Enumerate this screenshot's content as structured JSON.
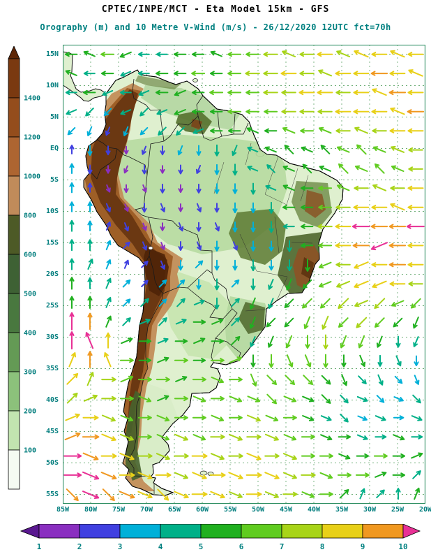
{
  "chart_data": {
    "type": "heatmap",
    "title": "CPTEC/INPE/MCT -  Eta Model 15km - GFS",
    "subtitle": "Orography (m) and 10 Metre V-Wind (m/s) - 26/12/2020 12UTC fct=70h",
    "region": "South America",
    "grid_on": true,
    "lat_ticks": [
      "15N",
      "10N",
      "5N",
      "EQ",
      "5S",
      "10S",
      "15S",
      "20S",
      "25S",
      "30S",
      "35S",
      "40S",
      "45S",
      "50S",
      "55S"
    ],
    "lon_ticks": [
      "85W",
      "80W",
      "75W",
      "70W",
      "65W",
      "60W",
      "55W",
      "50W",
      "45W",
      "40W",
      "35W",
      "30W",
      "25W",
      "20W"
    ],
    "elevation_scale": {
      "units": "m",
      "tick_labels": [
        "1400",
        "1200",
        "1000",
        "800",
        "600",
        "500",
        "400",
        "300",
        "200",
        "100"
      ],
      "tip_color": "#5d2607",
      "segment_colors": [
        "#7a3910",
        "#944d1c",
        "#ad6531",
        "#c08b5a",
        "#4d5a26",
        "#3e6134",
        "#49783f",
        "#649a55",
        "#8cc17b",
        "#c2e4b0",
        "#f5fbf2"
      ]
    },
    "wind_scale": {
      "units": "m/s",
      "tick_labels": [
        "1",
        "2",
        "3",
        "4",
        "5",
        "6",
        "7",
        "8",
        "9",
        "10"
      ],
      "bar_colors": [
        "#5a1890",
        "#8a2fc0",
        "#4040e0",
        "#00b0d8",
        "#00b088",
        "#20b020",
        "#60cc20",
        "#a8d418",
        "#e8d018",
        "#f09820",
        "#e83095"
      ],
      "arrow_colors": [
        "#8a2fc0",
        "#4040e0",
        "#00b0d8",
        "#00b088",
        "#20b020",
        "#60cc20",
        "#a8d418",
        "#e8d018",
        "#f09820",
        "#e83095"
      ]
    },
    "wind_field": {
      "cols": 20,
      "rows": 24,
      "encoding": "token = speed hex (1-9, a=10 m/s) + direction hex (0=E, steps of 22.5 deg clockwise on screen)",
      "rows_data": [
        "58 59 68 57 48 48 58 58 59 68 68 78 79 78 88 79 89 88 89 88",
        "59 48 58 47 48 58 58 68 58 68 78 78 88 78 79 88 88 98 88 89",
        "48 58 47 48 47 58 57 58 68 68 68 78 78 88 88 78 88 89 98 88",
        "47 46 36 47 46 47 57 58 58 68 68 68 78 78 78 88 88 88 89 98",
        "36 35 25 35 36 46 46 47 58 58 59 58 69 68 69 78 79 78 88 88",
        "2c 34 24 14 25 24 35 34 44 45 49 59 5a 59 5a 69 6a 69 79 78",
        "3c 24 14 15 24 14 24 25 34 44 49 4a 59 5a 59 6a 69 6a 69 78",
        "3c 2c 13 14 13 24 14 24 34 34 44 49 59 58 68 69 78 79 78 88",
        "3c 3c 23 13 24 23 14 23 24 34 34 44 58 58 68 78 88 88 89 88",
        "4c 3c 2d 23 13 14 23 24 23 34 34 44 48 58 78 88 a8 98 98 a8",
        "4c 4c 3d 2e 23 13 24 23 34 23 34 34 44 58 68 88 98 a7 98 88",
        "4c 4d 3d 2d 2e 23 34 3e 34 34 44 34 44 54 67 78 87 88 98 88",
        "5c 4c 4d 3e 2e 3e 3e 34 44 3e 44 45 55 56 67 77 87 87 88 78",
        "5c 5c 4d 3e 4e 3e 4e 4f 44 4e 55 45 56 66 66 76 77 76 67 66",
        "ac 9c 5d 4e 4f 4e 4f 50 5f 4e 55 56 56 65 75 66 76 66 56 55",
        "ac ab 8c 5f 50 4f 50 5f 50 5e 45 55 65 64 74 65 65 55 44 45",
        "8d 9c 8b 60 50 5f 60 50 60 6f 54 64 63 63 64 54 53 44 43 34",
        "8e 7d 70 6f 60 60 5f 60 61 60 63 62 62 62 52 53 42 43 32 33",
        "7e 7f 70 60 61 5f 60 61 60 61 61 62 61 51 52 42 41 32 31 42",
        "8f 80 71 61 60 61 60 60 61 60 71 61 60 51 41 42 31 41 30 41",
        "9f 90 81 71 60 61 71 61 70 71 70 71 61 60 51 50 41 40 51 40",
        "a0 91 80 81 70 71 70 80 71 70 81 70 71 60 60 51 50 60 50 5f",
        "a0 a1 91 80 81 80 71 81 80 81 80 81 71 70 61 60 60 5f 50 4e",
        "92 a1 92 91 81 82 81 80 81 71 80 71 70 61 60 5e 4d 4e 4c 5d"
      ]
    }
  },
  "colors": {
    "label_teal": "#007d7d",
    "subtitle_teal": "#008080",
    "grid_green": "#55a060",
    "frame_green": "#2f8f63",
    "land_base": "#dff0cf",
    "coast_black": "#111111"
  }
}
